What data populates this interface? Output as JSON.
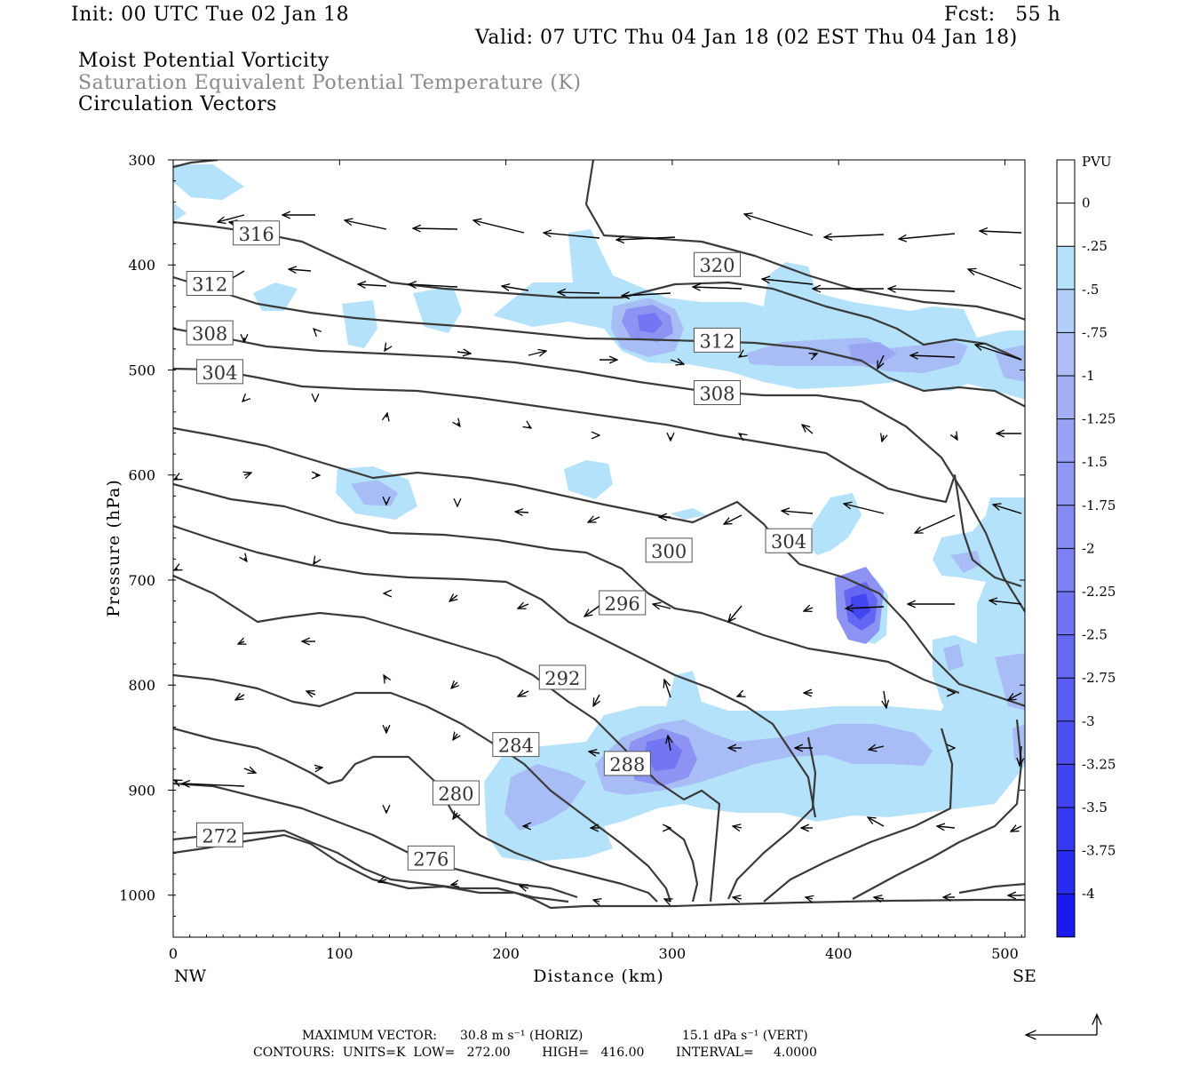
{
  "header": {
    "init": "Init: 00 UTC Tue 02 Jan 18",
    "fcst": "Fcst:   55 h",
    "valid": "Valid: 07 UTC Thu 04 Jan 18 (02 EST Thu 04 Jan 18)",
    "title1": "Moist Potential Vorticity",
    "title2": "Saturation Equivalent Potential Temperature (K)",
    "title3": "Circulation Vectors"
  },
  "footer": {
    "max_vector_label": "MAXIMUM VECTOR:",
    "max_vector_horiz": "30.8 m s⁻¹ (HORIZ)",
    "max_vector_vert": "15.1 dPa s⁻¹ (VERT)",
    "contours_line": "CONTOURS:  UNITS=K  LOW=   272.00        HIGH=   416.00        INTERVAL=     4.0000"
  },
  "colors": {
    "contour": "#3a3a3a",
    "pv_light": "#b4e2fa",
    "pv_mid": "#a8bdf5",
    "pv_strong": "#7f82f3",
    "pv_core": "#3a3af0"
  },
  "chart_data": {
    "type": "contour",
    "xlabel": "Distance (km)",
    "ylabel": "Pressure (hPa)",
    "x_left_label": "NW",
    "x_right_label": "SE",
    "xlim": [
      0,
      512
    ],
    "ylim": [
      1040,
      300
    ],
    "xticks": [
      0,
      100,
      200,
      300,
      400,
      500
    ],
    "yticks": [
      300,
      400,
      500,
      600,
      700,
      800,
      900,
      1000
    ],
    "colorbar": {
      "unit": "PVU",
      "levels": [
        "0",
        "-.25",
        "-.5",
        "-.75",
        "-1",
        "-1.25",
        "-1.5",
        "-1.75",
        "-2",
        "-2.25",
        "-2.5",
        "-2.75",
        "-3",
        "-3.25",
        "-3.5",
        "-3.75",
        "-4"
      ]
    },
    "contour_labels": [
      {
        "value": "316",
        "x": 50,
        "p": 370
      },
      {
        "value": "312",
        "x": 22,
        "p": 418
      },
      {
        "value": "308",
        "x": 22,
        "p": 465
      },
      {
        "value": "304",
        "x": 28,
        "p": 502
      },
      {
        "value": "320",
        "x": 327,
        "p": 400
      },
      {
        "value": "312",
        "x": 327,
        "p": 472
      },
      {
        "value": "308",
        "x": 327,
        "p": 522
      },
      {
        "value": "304",
        "x": 370,
        "p": 663
      },
      {
        "value": "300",
        "x": 298,
        "p": 672
      },
      {
        "value": "296",
        "x": 270,
        "p": 722
      },
      {
        "value": "292",
        "x": 234,
        "p": 793
      },
      {
        "value": "284",
        "x": 206,
        "p": 857
      },
      {
        "value": "288",
        "x": 273,
        "p": 875
      },
      {
        "value": "280",
        "x": 170,
        "p": 903
      },
      {
        "value": "276",
        "x": 155,
        "p": 965
      },
      {
        "value": "272",
        "x": 28,
        "p": 943
      }
    ]
  }
}
